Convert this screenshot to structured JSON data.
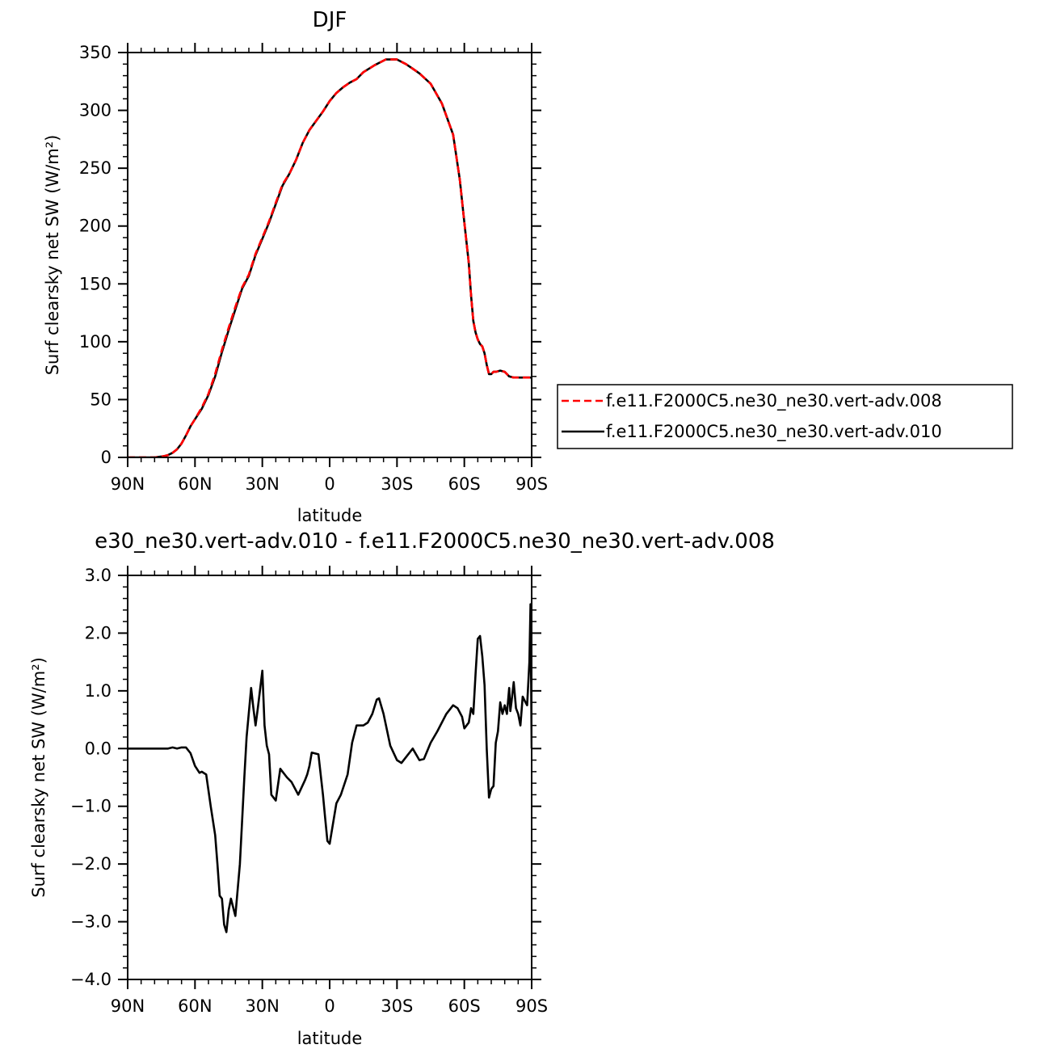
{
  "chart_data": [
    {
      "type": "line",
      "title": "DJF",
      "xlabel": "latitude",
      "ylabel": "Surf clearsky net SW (W/m²)",
      "xlim": [
        -90,
        90
      ],
      "ylim": [
        0,
        350
      ],
      "xticks": [
        -90,
        -60,
        -30,
        0,
        30,
        60,
        90
      ],
      "xtick_labels": [
        "90N",
        "60N",
        "30N",
        "0",
        "30S",
        "60S",
        "90S"
      ],
      "yticks": [
        0,
        50,
        100,
        150,
        200,
        250,
        300,
        350
      ],
      "ytick_labels": [
        "0",
        "50",
        "100",
        "150",
        "200",
        "250",
        "300",
        "350"
      ],
      "legend_position": "right",
      "series": [
        {
          "name": "f.e11.F2000C5.ne30_ne30.vert-adv.008",
          "color": "#ff0000",
          "dash": "dashed",
          "x": [
            -90,
            -84,
            -78,
            -74,
            -72,
            -70,
            -68,
            -66,
            -64,
            -62,
            -60,
            -57,
            -54,
            -51,
            -48,
            -45,
            -42,
            -39,
            -36,
            -33,
            -30,
            -27,
            -24,
            -21,
            -18,
            -15,
            -12,
            -9,
            -6,
            -3,
            0,
            3,
            6,
            9,
            12,
            15,
            20,
            25,
            30,
            34,
            37,
            40,
            45,
            50,
            55,
            58,
            60,
            62,
            63,
            64,
            65,
            66,
            67,
            68,
            69,
            70,
            71,
            72,
            73,
            74,
            76,
            78,
            79,
            80,
            82,
            84,
            86,
            87,
            88,
            90
          ],
          "y": [
            0,
            0,
            0,
            1,
            2,
            4,
            7,
            12,
            19,
            27,
            33,
            43,
            55,
            72,
            93,
            112,
            130,
            147,
            158,
            176,
            190,
            204,
            220,
            236,
            245,
            257,
            272,
            283,
            291,
            299,
            308,
            315,
            320,
            324,
            327,
            333,
            339,
            344,
            344,
            340,
            336,
            332,
            323,
            306,
            279,
            240,
            203,
            168,
            140,
            118,
            108,
            102,
            98,
            96,
            90,
            80,
            72,
            72,
            74,
            74,
            75,
            74,
            72,
            70,
            69,
            69,
            69,
            69,
            69,
            69
          ]
        },
        {
          "name": "f.e11.F2000C5.ne30_ne30.vert-adv.010",
          "color": "#000000",
          "dash": "solid",
          "x": [
            -90,
            -84,
            -78,
            -74,
            -72,
            -70,
            -68,
            -66,
            -64,
            -62,
            -60,
            -57,
            -54,
            -51,
            -48,
            -45,
            -42,
            -39,
            -36,
            -33,
            -30,
            -27,
            -24,
            -21,
            -18,
            -15,
            -12,
            -9,
            -6,
            -3,
            0,
            3,
            6,
            9,
            12,
            15,
            20,
            25,
            30,
            34,
            37,
            40,
            45,
            50,
            55,
            58,
            60,
            62,
            63,
            64,
            65,
            66,
            67,
            68,
            69,
            70,
            71,
            72,
            73,
            74,
            76,
            78,
            79,
            80,
            82,
            84,
            86,
            87,
            88,
            90
          ],
          "y": [
            0,
            0,
            0,
            1,
            2,
            4,
            7,
            12,
            19,
            27,
            33,
            42,
            54,
            70,
            91,
            110,
            128,
            146,
            157,
            175,
            189,
            203,
            219,
            235,
            245,
            257,
            272,
            283,
            291,
            299,
            308,
            315,
            320,
            324,
            327,
            333,
            339,
            344,
            344,
            340,
            336,
            332,
            323,
            306,
            279,
            240,
            203,
            168,
            140,
            118,
            108,
            102,
            98,
            96,
            90,
            80,
            72,
            72,
            74,
            74,
            75,
            74,
            72,
            70,
            69,
            69,
            69,
            69,
            69,
            69
          ]
        }
      ]
    },
    {
      "type": "line",
      "title": "e30_ne30.vert-adv.010 - f.e11.F2000C5.ne30_ne30.vert-adv.008",
      "xlabel": "latitude",
      "ylabel": "Surf clearsky net SW (W/m²)",
      "xlim": [
        -90,
        90
      ],
      "ylim": [
        -4.0,
        3.0
      ],
      "xticks": [
        -90,
        -60,
        -30,
        0,
        30,
        60,
        90
      ],
      "xtick_labels": [
        "90N",
        "60N",
        "30N",
        "0",
        "30S",
        "60S",
        "90S"
      ],
      "yticks": [
        -4.0,
        -3.0,
        -2.0,
        -1.0,
        0.0,
        1.0,
        2.0,
        3.0
      ],
      "ytick_labels": [
        "−4.0",
        "−3.0",
        "−2.0",
        "−1.0",
        "0.0",
        "1.0",
        "2.0",
        "3.0"
      ],
      "series": [
        {
          "color": "#000000",
          "dash": "solid",
          "x": [
            -90,
            -78,
            -72,
            -70,
            -68,
            -66,
            -64,
            -62,
            -60,
            -58,
            -57,
            -55,
            -53,
            -51,
            -50,
            -49,
            -48,
            -47,
            -46,
            -45,
            -44,
            -42,
            -40,
            -38,
            -37,
            -35,
            -34,
            -33,
            -32,
            -30,
            -29,
            -28,
            -27,
            -26,
            -24,
            -22,
            -21,
            -19,
            -17,
            -14,
            -11,
            -10,
            -9,
            -8,
            -5,
            -3,
            -2,
            -1,
            0,
            3,
            5,
            8,
            10,
            12,
            15,
            17,
            19,
            21,
            22,
            24,
            27,
            30,
            32,
            35,
            37,
            40,
            42,
            45,
            48,
            52,
            55,
            57,
            59,
            60,
            62,
            63,
            64,
            65,
            66,
            67,
            68,
            69,
            70,
            71,
            72,
            73,
            74,
            75,
            76,
            77,
            78,
            79,
            80,
            80.5,
            81,
            82,
            83,
            84,
            85,
            86,
            87,
            88,
            89,
            89.5,
            90
          ],
          "y": [
            0,
            0,
            0,
            0.02,
            0,
            0.02,
            0.02,
            -0.08,
            -0.3,
            -0.42,
            -0.4,
            -0.45,
            -1.0,
            -1.5,
            -2.0,
            -2.55,
            -2.6,
            -3.05,
            -3.18,
            -2.8,
            -2.6,
            -2.9,
            -2.0,
            -0.5,
            0.2,
            1.05,
            0.7,
            0.4,
            0.7,
            1.35,
            0.4,
            0.05,
            -0.1,
            -0.8,
            -0.9,
            -0.35,
            -0.4,
            -0.5,
            -0.58,
            -0.8,
            -0.55,
            -0.45,
            -0.3,
            -0.07,
            -0.1,
            -0.8,
            -1.2,
            -1.6,
            -1.65,
            -0.95,
            -0.8,
            -0.45,
            0.1,
            0.4,
            0.4,
            0.45,
            0.6,
            0.85,
            0.87,
            0.6,
            0.05,
            -0.2,
            -0.25,
            -0.1,
            0,
            -0.2,
            -0.18,
            0.1,
            0.3,
            0.6,
            0.75,
            0.7,
            0.55,
            0.35,
            0.45,
            0.7,
            0.6,
            1.3,
            1.9,
            1.95,
            1.6,
            1.1,
            0,
            -0.85,
            -0.7,
            -0.65,
            0.1,
            0.3,
            0.8,
            0.6,
            0.75,
            0.6,
            1.05,
            0.65,
            0.8,
            1.15,
            0.7,
            0.6,
            0.4,
            0.9,
            0.82,
            0.75,
            1.5,
            2.5,
            0
          ]
        }
      ]
    }
  ]
}
